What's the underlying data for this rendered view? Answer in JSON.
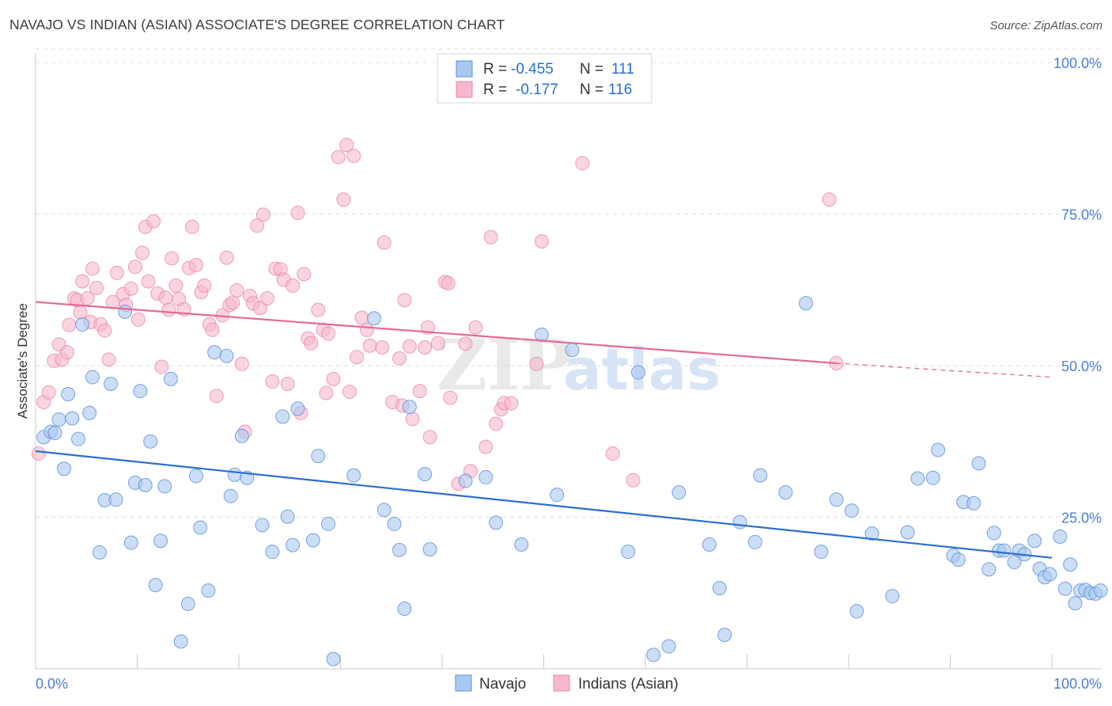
{
  "title": "NAVAJO VS INDIAN (ASIAN) ASSOCIATE'S DEGREE CORRELATION CHART",
  "source": "Source: ZipAtlas.com",
  "watermark": {
    "zip": "ZIP",
    "atlas": "atlas"
  },
  "stats": [
    {
      "series": "Navajo",
      "r_label": "R =",
      "r_value": "-0.455",
      "n_label": "N =",
      "n_value": "111"
    },
    {
      "series": "Indians (Asian)",
      "r_label": "R =",
      "r_value": "-0.177",
      "n_label": "N =",
      "n_value": "116"
    }
  ],
  "colors": {
    "navajo_fill": "#a9c8f0",
    "navajo_stroke": "#5b8fd8",
    "navajo_line": "#2a6fd0",
    "indian_fill": "#f6b8cc",
    "indian_stroke": "#e889a8",
    "indian_line": "#e46a93",
    "tick": "#4a7fd4",
    "grid": "#dedede"
  },
  "chart_data": {
    "type": "scatter",
    "title": "NAVAJO VS INDIAN (ASIAN) ASSOCIATE'S DEGREE CORRELATION CHART",
    "xlabel": "",
    "ylabel": "Associate's Degree",
    "xlim": [
      0,
      100
    ],
    "ylim": [
      0,
      100
    ],
    "x_tick_labels": [
      "0.0%",
      "100.0%"
    ],
    "y_ticks": [
      25,
      50,
      75,
      100
    ],
    "y_tick_labels": [
      "25.0%",
      "50.0%",
      "75.0%",
      "100.0%"
    ],
    "grid": true,
    "legend_position": "bottom",
    "series": [
      {
        "name": "Navajo",
        "trend": {
          "x0": 0,
          "y0": 35.9,
          "x1": 100,
          "y1": 18.3
        },
        "points": [
          [
            0.8,
            38.2
          ],
          [
            1.5,
            39.1
          ],
          [
            1.9,
            38.9
          ],
          [
            2.3,
            41.1
          ],
          [
            2.8,
            33.0
          ],
          [
            3.2,
            45.3
          ],
          [
            3.6,
            41.3
          ],
          [
            4.2,
            37.9
          ],
          [
            4.6,
            56.8
          ],
          [
            5.3,
            42.2
          ],
          [
            5.6,
            48.1
          ],
          [
            6.3,
            19.2
          ],
          [
            6.8,
            27.8
          ],
          [
            7.4,
            47.0
          ],
          [
            7.9,
            27.9
          ],
          [
            8.8,
            58.9
          ],
          [
            9.4,
            20.8
          ],
          [
            9.8,
            30.7
          ],
          [
            10.3,
            45.8
          ],
          [
            10.8,
            30.3
          ],
          [
            11.3,
            37.5
          ],
          [
            11.8,
            13.8
          ],
          [
            12.3,
            21.1
          ],
          [
            12.7,
            30.1
          ],
          [
            13.3,
            47.8
          ],
          [
            14.3,
            4.5
          ],
          [
            15.0,
            10.7
          ],
          [
            15.8,
            31.8
          ],
          [
            16.2,
            23.3
          ],
          [
            17.0,
            12.9
          ],
          [
            17.6,
            52.2
          ],
          [
            18.8,
            51.6
          ],
          [
            19.2,
            28.5
          ],
          [
            19.6,
            32.0
          ],
          [
            20.3,
            38.4
          ],
          [
            20.8,
            31.5
          ],
          [
            22.3,
            23.7
          ],
          [
            23.3,
            19.3
          ],
          [
            24.3,
            41.6
          ],
          [
            24.8,
            25.1
          ],
          [
            25.3,
            20.4
          ],
          [
            25.8,
            42.9
          ],
          [
            27.3,
            21.2
          ],
          [
            27.8,
            35.1
          ],
          [
            28.8,
            23.9
          ],
          [
            29.3,
            1.6
          ],
          [
            31.3,
            31.9
          ],
          [
            33.3,
            57.8
          ],
          [
            34.3,
            26.2
          ],
          [
            35.3,
            23.9
          ],
          [
            35.8,
            19.6
          ],
          [
            36.3,
            9.9
          ],
          [
            36.8,
            43.2
          ],
          [
            38.3,
            32.1
          ],
          [
            38.8,
            19.7
          ],
          [
            42.3,
            31.0
          ],
          [
            44.3,
            31.6
          ],
          [
            45.3,
            24.1
          ],
          [
            47.8,
            20.5
          ],
          [
            49.8,
            55.1
          ],
          [
            51.3,
            28.7
          ],
          [
            52.8,
            52.6
          ],
          [
            58.3,
            19.3
          ],
          [
            59.3,
            48.9
          ],
          [
            60.8,
            2.3
          ],
          [
            62.3,
            3.7
          ],
          [
            63.3,
            29.1
          ],
          [
            66.3,
            20.5
          ],
          [
            67.3,
            13.3
          ],
          [
            67.8,
            5.6
          ],
          [
            69.3,
            24.2
          ],
          [
            70.8,
            20.9
          ],
          [
            71.3,
            31.9
          ],
          [
            73.8,
            29.1
          ],
          [
            75.8,
            60.3
          ],
          [
            77.3,
            19.3
          ],
          [
            78.8,
            27.9
          ],
          [
            80.3,
            26.1
          ],
          [
            80.8,
            9.5
          ],
          [
            82.3,
            22.3
          ],
          [
            84.3,
            12.0
          ],
          [
            85.8,
            22.5
          ],
          [
            86.8,
            31.4
          ],
          [
            88.3,
            31.5
          ],
          [
            88.8,
            36.1
          ],
          [
            90.3,
            18.7
          ],
          [
            90.8,
            18.0
          ],
          [
            91.3,
            27.5
          ],
          [
            92.3,
            27.3
          ],
          [
            92.8,
            33.9
          ],
          [
            93.8,
            16.4
          ],
          [
            94.3,
            22.4
          ],
          [
            94.8,
            19.5
          ],
          [
            95.3,
            19.5
          ],
          [
            96.3,
            17.6
          ],
          [
            96.8,
            19.5
          ],
          [
            97.3,
            18.9
          ],
          [
            98.3,
            21.1
          ],
          [
            98.8,
            16.5
          ],
          [
            99.3,
            15.1
          ],
          [
            99.8,
            15.6
          ],
          [
            100.8,
            21.8
          ],
          [
            101.3,
            13.2
          ],
          [
            101.8,
            17.2
          ],
          [
            102.3,
            10.8
          ],
          [
            102.8,
            12.9
          ],
          [
            103.3,
            13.0
          ],
          [
            103.8,
            12.5
          ],
          [
            104.3,
            12.4
          ],
          [
            104.8,
            12.9
          ]
        ]
      },
      {
        "name": "Indians (Asian)",
        "trend": {
          "x0": 0,
          "y0": 60.5,
          "x1": 78.8,
          "y1": 50.4
        },
        "trend_dashed": {
          "x0": 78.8,
          "y0": 50.4,
          "x1": 100,
          "y1": 48.1
        },
        "points": [
          [
            0.3,
            35.5
          ],
          [
            0.8,
            44.0
          ],
          [
            1.3,
            45.6
          ],
          [
            1.8,
            50.8
          ],
          [
            2.3,
            53.5
          ],
          [
            2.6,
            51.0
          ],
          [
            3.1,
            52.2
          ],
          [
            3.3,
            56.7
          ],
          [
            3.8,
            61.1
          ],
          [
            4.1,
            60.8
          ],
          [
            4.4,
            58.8
          ],
          [
            4.6,
            63.9
          ],
          [
            5.1,
            61.1
          ],
          [
            5.4,
            57.2
          ],
          [
            5.6,
            66.0
          ],
          [
            6.0,
            62.8
          ],
          [
            6.4,
            56.8
          ],
          [
            6.8,
            55.8
          ],
          [
            7.2,
            51.0
          ],
          [
            7.6,
            60.5
          ],
          [
            8.0,
            65.3
          ],
          [
            8.6,
            61.8
          ],
          [
            8.9,
            60.0
          ],
          [
            9.4,
            62.7
          ],
          [
            9.8,
            66.3
          ],
          [
            10.1,
            57.6
          ],
          [
            10.5,
            68.6
          ],
          [
            10.8,
            72.9
          ],
          [
            11.1,
            63.9
          ],
          [
            11.6,
            73.8
          ],
          [
            12.0,
            61.9
          ],
          [
            12.4,
            49.8
          ],
          [
            12.8,
            61.2
          ],
          [
            13.1,
            59.2
          ],
          [
            13.4,
            67.7
          ],
          [
            13.8,
            63.2
          ],
          [
            14.1,
            61.0
          ],
          [
            14.6,
            59.3
          ],
          [
            15.1,
            66.1
          ],
          [
            15.4,
            72.9
          ],
          [
            15.8,
            66.6
          ],
          [
            16.3,
            62.1
          ],
          [
            16.6,
            63.2
          ],
          [
            17.1,
            56.8
          ],
          [
            17.4,
            55.9
          ],
          [
            17.8,
            45.0
          ],
          [
            18.4,
            58.3
          ],
          [
            18.8,
            67.8
          ],
          [
            19.1,
            60.0
          ],
          [
            19.4,
            60.4
          ],
          [
            19.8,
            62.4
          ],
          [
            20.3,
            50.3
          ],
          [
            20.6,
            39.1
          ],
          [
            21.1,
            61.5
          ],
          [
            21.4,
            60.3
          ],
          [
            21.8,
            73.1
          ],
          [
            22.1,
            59.5
          ],
          [
            22.4,
            74.9
          ],
          [
            22.8,
            61.1
          ],
          [
            23.3,
            47.4
          ],
          [
            23.6,
            66.0
          ],
          [
            24.1,
            65.9
          ],
          [
            24.4,
            64.2
          ],
          [
            24.8,
            47.0
          ],
          [
            25.3,
            63.2
          ],
          [
            25.8,
            75.2
          ],
          [
            26.1,
            42.2
          ],
          [
            26.4,
            65.1
          ],
          [
            26.8,
            54.5
          ],
          [
            27.1,
            53.7
          ],
          [
            27.8,
            59.2
          ],
          [
            28.3,
            55.9
          ],
          [
            28.6,
            45.5
          ],
          [
            28.8,
            55.3
          ],
          [
            29.3,
            47.8
          ],
          [
            29.8,
            84.4
          ],
          [
            30.3,
            77.4
          ],
          [
            30.6,
            86.4
          ],
          [
            30.9,
            45.7
          ],
          [
            31.3,
            84.6
          ],
          [
            31.6,
            51.4
          ],
          [
            32.1,
            57.9
          ],
          [
            32.6,
            55.9
          ],
          [
            32.9,
            53.3
          ],
          [
            34.1,
            53.0
          ],
          [
            34.3,
            70.3
          ],
          [
            35.1,
            44.0
          ],
          [
            35.8,
            51.2
          ],
          [
            36.1,
            43.4
          ],
          [
            36.3,
            60.8
          ],
          [
            36.8,
            53.2
          ],
          [
            37.1,
            41.2
          ],
          [
            37.8,
            45.8
          ],
          [
            38.3,
            53.0
          ],
          [
            38.6,
            56.3
          ],
          [
            38.8,
            38.2
          ],
          [
            39.6,
            53.7
          ],
          [
            40.3,
            63.8
          ],
          [
            40.6,
            63.6
          ],
          [
            40.8,
            44.7
          ],
          [
            41.6,
            30.5
          ],
          [
            42.3,
            53.6
          ],
          [
            42.8,
            32.6
          ],
          [
            43.3,
            56.3
          ],
          [
            44.3,
            36.6
          ],
          [
            44.8,
            71.2
          ],
          [
            45.3,
            40.4
          ],
          [
            45.8,
            42.8
          ],
          [
            46.1,
            43.8
          ],
          [
            46.8,
            43.8
          ],
          [
            49.3,
            50.3
          ],
          [
            49.8,
            70.5
          ],
          [
            53.8,
            83.4
          ],
          [
            56.8,
            35.5
          ],
          [
            58.8,
            31.1
          ],
          [
            78.1,
            77.4
          ],
          [
            78.8,
            50.4
          ]
        ]
      }
    ]
  },
  "legend": {
    "items": [
      "Navajo",
      "Indians (Asian)"
    ]
  }
}
